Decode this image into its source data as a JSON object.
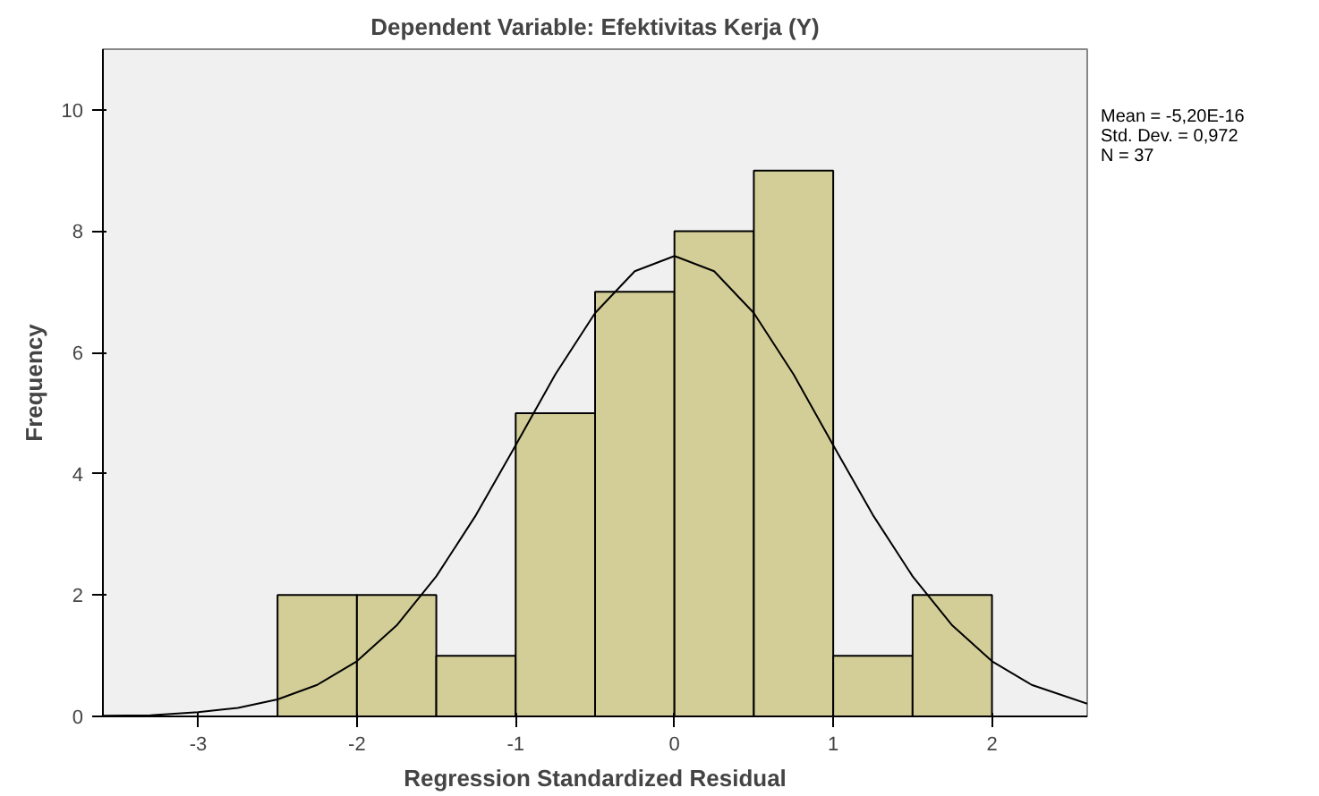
{
  "chart_data": {
    "type": "histogram",
    "title": "Dependent Variable: Efektivitas Kerja (Y)",
    "xlabel": "Regression Standardized Residual",
    "ylabel": "Frequency",
    "bins": [
      -2.5,
      -2,
      -1.5,
      -1,
      -0.5,
      0,
      0.5,
      1,
      1.5,
      2
    ],
    "values": [
      2,
      2,
      1,
      5,
      7,
      8,
      9,
      1,
      2
    ],
    "color": "#d3ce97",
    "series": [
      {
        "type": "line",
        "color": "#000000",
        "x": [
          -3.6,
          -3.3,
          -3,
          -2.75,
          -2.5,
          -2.25,
          -2,
          -1.75,
          -1.5,
          -1.25,
          -1,
          -0.75,
          -0.5,
          -0.25,
          0,
          0.25,
          0.5,
          0.75,
          1,
          1.25,
          1.5,
          1.75,
          2,
          2.25,
          2.6
        ],
        "values": [
          0.01,
          0.02,
          0.07,
          0.14,
          0.28,
          0.52,
          0.91,
          1.5,
          2.31,
          3.32,
          4.47,
          5.64,
          6.65,
          7.34,
          7.59,
          7.34,
          6.65,
          5.64,
          4.47,
          3.32,
          2.31,
          1.5,
          0.91,
          0.52,
          0.21
        ]
      }
    ],
    "xlim": [
      -3.6,
      2.6
    ],
    "ylim": [
      0,
      11
    ],
    "xticks": [
      -3,
      -2,
      -1,
      0,
      1,
      2
    ],
    "yticks": [
      0,
      2,
      4,
      6,
      8,
      10
    ],
    "grid": false,
    "annotations": [
      "Mean = -5,20E-16",
      "Std. Dev. = 0,972",
      "N = 37"
    ]
  }
}
